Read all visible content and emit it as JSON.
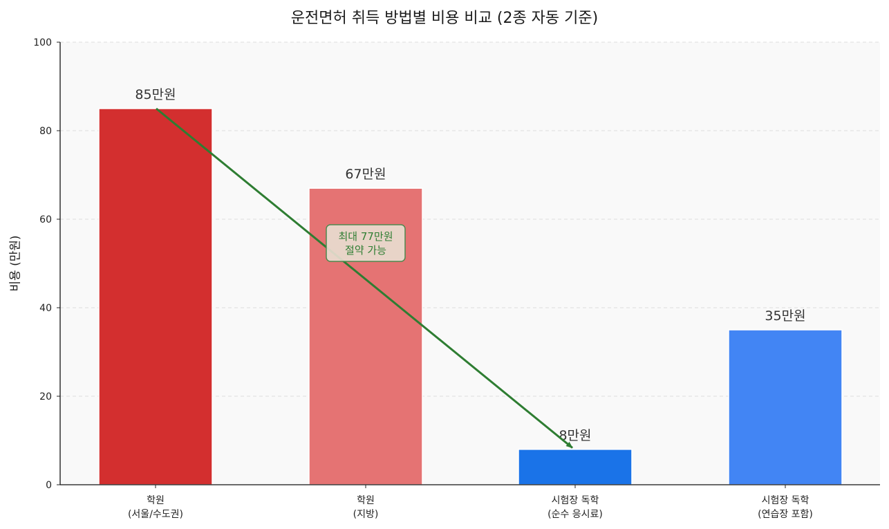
{
  "chart_data": {
    "type": "bar",
    "title": "운전면허 취득 방법별 비용 비교 (2종 자동 기준)",
    "xlabel": "",
    "ylabel": "비용 (만원)",
    "ylim": [
      0,
      100
    ],
    "yticks": [
      0,
      20,
      40,
      60,
      80,
      100
    ],
    "grid": {
      "axis": "y",
      "style": "dashed"
    },
    "categories": [
      {
        "line1": "학원",
        "line2": "(서울/수도권)"
      },
      {
        "line1": "학원",
        "line2": "(지방)"
      },
      {
        "line1": "시험장 독학",
        "line2": "(순수 응시료)"
      },
      {
        "line1": "시험장 독학",
        "line2": "(연습장 포함)"
      }
    ],
    "values": [
      85,
      67,
      8,
      35
    ],
    "value_labels": [
      "85만원",
      "67만원",
      "8만원",
      "35만원"
    ],
    "colors": [
      "#d32f2f",
      "#e57373",
      "#1a73e8",
      "#4285f4"
    ],
    "annotation": {
      "line1": "최대 77만원",
      "line2": "절약 가능",
      "arrow_from": {
        "category_index": 0,
        "value": 85
      },
      "arrow_to": {
        "category_index": 2,
        "value": 8.5
      },
      "color": "#2e7d32",
      "box_fill": "#e8dccf"
    },
    "plot_background": "#f9f9f9"
  }
}
